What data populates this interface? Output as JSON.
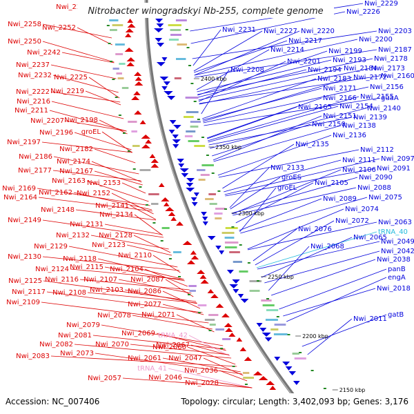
{
  "header": {
    "title": "Nitrobacter winogradskyi Nb-255, complete genome"
  },
  "footer": {
    "accession": "Accession: NC_007406",
    "stats": "Topology: circular; Length: 3,402,093 bp; Genes: 3,176"
  },
  "colors": {
    "forward": "#0000dd",
    "reverse": "#dd0000",
    "trna_forward": "#22bbdd",
    "trna_reverse": "#ee99cc",
    "backbone": "#777777",
    "ruler_tick": "#228822"
  },
  "ruler": {
    "labels": [
      "2400 kbp",
      "2350 kbp",
      "2300 kbp",
      "2250 kbp",
      "2200 kbp",
      "2150 kbp"
    ]
  },
  "labels_right": [
    "Nwi_2229",
    "Nwi_2226",
    "Nwi_2231",
    "Nwi_2227",
    "Nwi_2220",
    "Nwi_2203",
    "Nwi_2217",
    "Nwi_2200",
    "Nwi_2214",
    "Nwi_2199",
    "Nwi_2187",
    "Nwi_2193",
    "Nwi_2178",
    "Nwi_2201",
    "Nwi_2208",
    "Nwi_2194",
    "Nwi_2184",
    "Nwi_2173",
    "Nwi_2183",
    "Nwi_2172",
    "Nwi_2160",
    "Nwi_2171",
    "Nwi_2156",
    "Nwi_2166",
    "Nwi_2155",
    "guaA",
    "Nwi_2165",
    "Nwi_2154",
    "Nwi_2140",
    "Nwi_2151",
    "Nwi_2139",
    "Nwi_2150",
    "Nwi_2138",
    "Nwi_2136",
    "Nwi_2135",
    "Nwi_2112",
    "Nwi_2111",
    "Nwi_2097",
    "Nwi_2133",
    "Nwi_2106",
    "Nwi_2091",
    "groES",
    "Nwi_2090",
    "Nwi_2105",
    "groEL",
    "Nwi_2088",
    "Nwi_2089",
    "Nwi_2075",
    "Nwi_2074",
    "Nwi_2072",
    "Nwi_2063",
    "Nwi_2076",
    "tRNA_40",
    "Nwi_2065",
    "Nwi_2068",
    "Nwi_2049",
    "Nwi_2042",
    "Nwi_2038",
    "panB",
    "engA",
    "Nwi_2018",
    "gatB",
    "Nwi_2011"
  ],
  "labels_left": [
    "Nwi_2260",
    "Nwi_2258",
    "Nwi_2252",
    "Nwi_2250",
    "Nwi_2242",
    "Nwi_2237",
    "Nwi_2232",
    "Nwi_2225",
    "Nwi_2222",
    "Nwi_2219",
    "Nwi_2216",
    "Nwi_2211",
    "Nwi_2207",
    "Nwi_2198",
    "Nwi_2196",
    "groEL",
    "Nwi_2197",
    "Nwi_2182",
    "Nwi_2186",
    "Nwi_2174",
    "Nwi_2177",
    "Nwi_2167",
    "Nwi_2169",
    "Nwi_2163",
    "Nwi_2153",
    "Nwi_2164",
    "Nwi_2162",
    "Nwi_2152",
    "Nwi_2148",
    "Nwi_2141",
    "Nwi_2149",
    "Nwi_2134",
    "Nwi_2131",
    "Nwi_2132",
    "Nwi_2128",
    "Nwi_2129",
    "Nwi_2123",
    "Nwi_2130",
    "Nwi_2110",
    "Nwi_2118",
    "Nwi_2124",
    "Nwi_2115",
    "Nwi_2104",
    "Nwi_2125",
    "Nwi_2116",
    "Nwi_2107",
    "Nwi_2087",
    "Nwi_2117",
    "Nwi_2108",
    "Nwi_2103",
    "Nwi_2086",
    "Nwi_2109",
    "Nwi_2077",
    "Nwi_2078",
    "Nwi_2071",
    "Nwi_2079",
    "Nwi_2067",
    "Nwi_2081",
    "Nwi_2069",
    "tRNA_42",
    "Nwi_2070",
    "Nwi_2082",
    "Nwi_2060",
    "Nwi_2073",
    "Nwi_2083",
    "Nwi_2061",
    "Nwi_2047",
    "tRNA_41",
    "Nwi_2036",
    "Nwi_2057",
    "Nwi_2046",
    "Nwi_2028"
  ]
}
